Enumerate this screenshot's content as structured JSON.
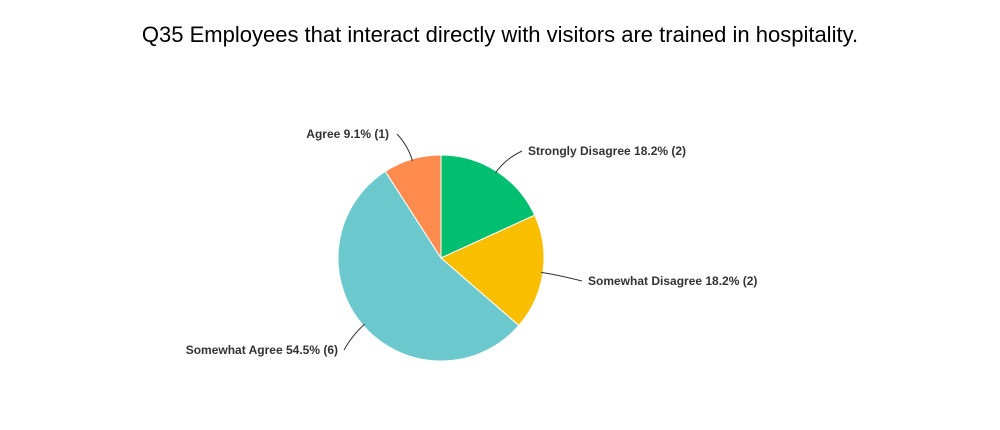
{
  "chart_data": {
    "type": "pie",
    "title": "Q35 Employees that interact directly with visitors are trained in hospitality.",
    "slices": [
      {
        "label": "Strongly Disagree",
        "percent": "18.2%",
        "count": 2,
        "value": 2,
        "color": "#00BF6F"
      },
      {
        "label": "Somewhat Disagree",
        "percent": "18.2%",
        "count": 2,
        "value": 2,
        "color": "#F9BE00"
      },
      {
        "label": "Somewhat Agree",
        "percent": "54.5%",
        "count": 6,
        "value": 6,
        "color": "#6BC8CD"
      },
      {
        "label": "Agree",
        "percent": "9.1%",
        "count": 1,
        "value": 1,
        "color": "#FF8B4F"
      }
    ]
  }
}
